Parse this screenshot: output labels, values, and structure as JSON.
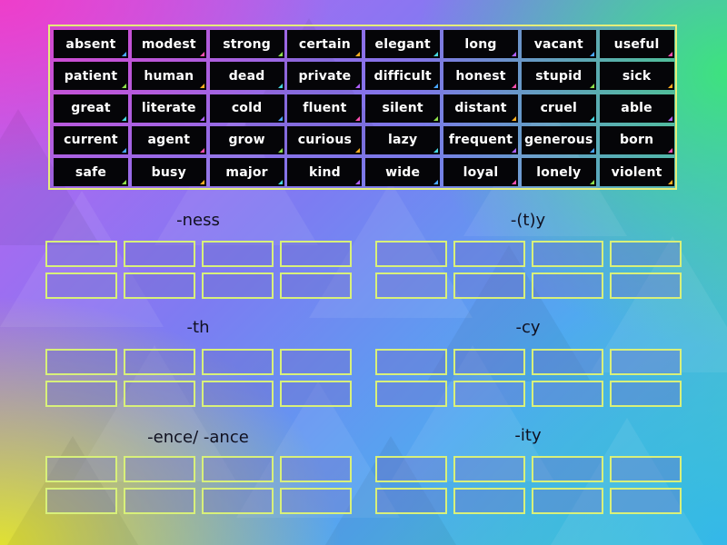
{
  "words": [
    "absent",
    "modest",
    "strong",
    "certain",
    "elegant",
    "long",
    "vacant",
    "useful",
    "patient",
    "human",
    "dead",
    "private",
    "difficult",
    "honest",
    "stupid",
    "sick",
    "great",
    "literate",
    "cold",
    "fluent",
    "silent",
    "distant",
    "cruel",
    "able",
    "current",
    "agent",
    "grow",
    "curious",
    "lazy",
    "frequent",
    "generous",
    "born",
    "safe",
    "busy",
    "major",
    "kind",
    "wide",
    "loyal",
    "lonely",
    "violent"
  ],
  "corner_colors": [
    "#4aa8ff",
    "#ff4fb0",
    "#8ee04a",
    "#ffb020",
    "#46d8e0",
    "#b060ff"
  ],
  "groups": [
    "-ness",
    "-(t)y",
    "-th",
    "-cy",
    "-ence/ -ance",
    "-ity"
  ]
}
